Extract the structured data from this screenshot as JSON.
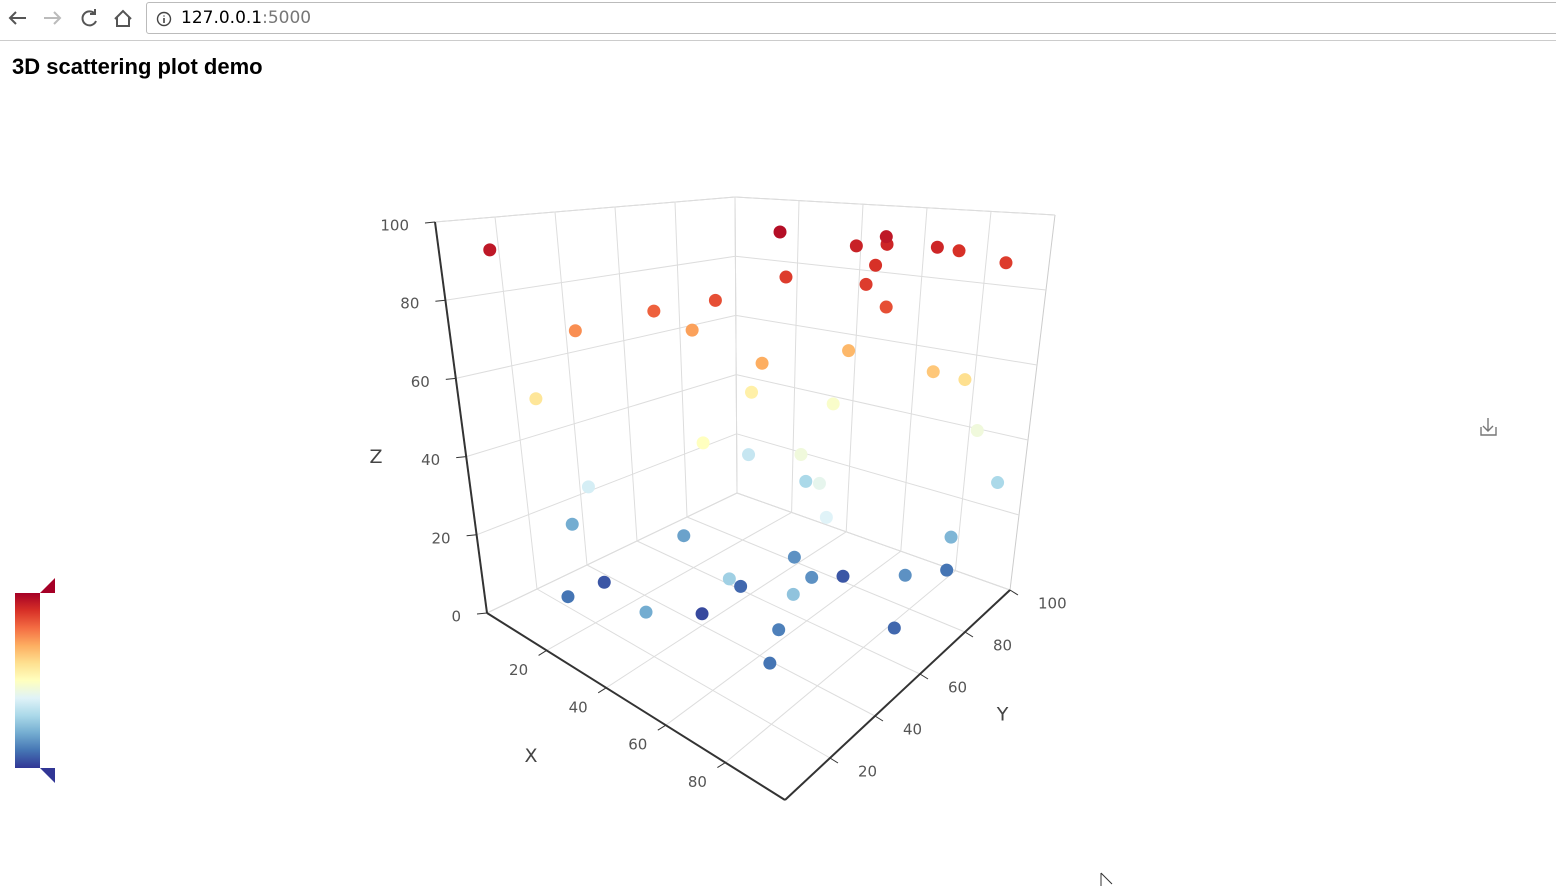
{
  "browser": {
    "url_host": "127.0.0.1",
    "url_port": ":5000"
  },
  "page": {
    "heading": "3D scattering plot demo"
  },
  "chart_data": {
    "type": "scatter3d",
    "x_label": "X",
    "y_label": "Y",
    "z_label": "Z",
    "xlim": [
      0,
      100
    ],
    "ylim": [
      0,
      100
    ],
    "zlim": [
      0,
      100
    ],
    "xticks": [
      20,
      40,
      60,
      80
    ],
    "yticks": [
      20,
      40,
      60,
      80,
      100
    ],
    "zticks": [
      0,
      20,
      40,
      60,
      80,
      100
    ],
    "grid": true,
    "visual_map": {
      "colors": [
        "#313695",
        "#4575b4",
        "#74add1",
        "#abd9e9",
        "#e0f3f8",
        "#ffffbf",
        "#fee090",
        "#fdae61",
        "#f46d43",
        "#d73027",
        "#a50026"
      ]
    },
    "x": [
      10,
      40,
      60,
      55,
      58,
      65,
      50,
      70,
      72,
      75,
      80,
      90,
      45,
      35,
      20,
      30,
      55,
      62,
      85,
      88,
      15,
      40,
      45,
      50,
      60,
      70,
      80,
      90,
      25,
      35,
      50,
      65,
      78,
      92,
      10,
      30,
      55,
      70,
      85,
      95,
      20,
      45,
      60,
      75,
      90,
      15,
      40,
      65,
      88,
      50
    ],
    "y": [
      5,
      70,
      85,
      80,
      88,
      75,
      60,
      65,
      90,
      95,
      60,
      95,
      40,
      30,
      20,
      50,
      45,
      70,
      75,
      85,
      10,
      60,
      35,
      80,
      55,
      50,
      40,
      90,
      15,
      65,
      70,
      20,
      30,
      80,
      25,
      45,
      60,
      35,
      70,
      95,
      10,
      50,
      75,
      25,
      60,
      30,
      40,
      55,
      85,
      5
    ],
    "z": [
      95,
      97,
      95,
      93,
      92,
      90,
      88,
      88,
      92,
      90,
      85,
      88,
      85,
      82,
      75,
      72,
      70,
      68,
      65,
      60,
      58,
      55,
      50,
      48,
      45,
      42,
      40,
      45,
      38,
      35,
      30,
      28,
      25,
      22,
      20,
      18,
      15,
      12,
      15,
      30,
      10,
      8,
      5,
      10,
      8,
      5,
      3,
      15,
      10,
      20
    ]
  }
}
